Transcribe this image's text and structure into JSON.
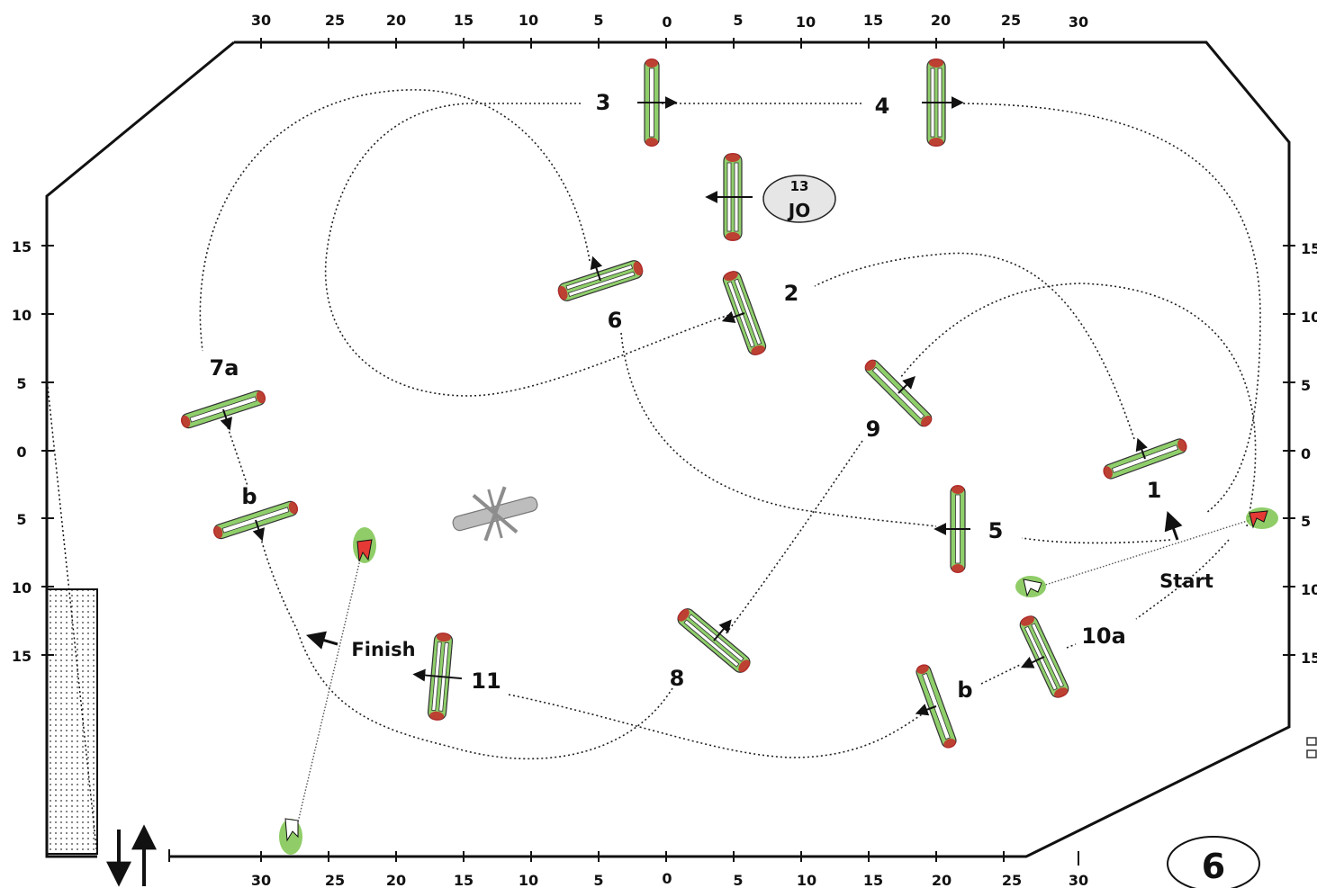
{
  "course": {
    "number": "6",
    "top_ticks": [
      "30",
      "25",
      "20",
      "15",
      "10",
      "5",
      "0",
      "5",
      "10",
      "15",
      "20",
      "25",
      "30"
    ],
    "bottom_ticks": [
      "30",
      "25",
      "20",
      "15",
      "10",
      "5",
      "0",
      "5",
      "10",
      "15",
      "20",
      "25",
      "30"
    ],
    "left_ticks": [
      "15",
      "10",
      "5",
      "0",
      "5",
      "10",
      "15"
    ],
    "right_ticks": [
      "15",
      "10",
      "5",
      "0",
      "5",
      "10",
      "15"
    ],
    "labels": {
      "obs1": "1",
      "obs2": "2",
      "obs3": "3",
      "obs4": "4",
      "obs5": "5",
      "obs6": "6",
      "obs7a": "7a",
      "obs7b": "b",
      "obs8": "8",
      "obs9": "9",
      "obs10a": "10a",
      "obs10b": "b",
      "obs11": "11",
      "jo_number": "13",
      "jo_text": "JO",
      "start": "Start",
      "finish": "Finish"
    }
  },
  "colors": {
    "rail_fill": "#8fcf6b",
    "rail_end": "#c62828",
    "flag_red": "#e53935",
    "flag_white": "#ffffff",
    "bush": "#7cc44e",
    "removed_fence": "#8d8d8d",
    "jo_badge": "#e6e6e6"
  },
  "icons": {
    "start_flag": "red-flag-icon",
    "finish_flag": "red-flag-icon",
    "white_flag": "white-flag-icon",
    "entrance_arrows": "up-down-arrows-icon",
    "removed_obstacle": "crossed-out-fence-icon"
  }
}
